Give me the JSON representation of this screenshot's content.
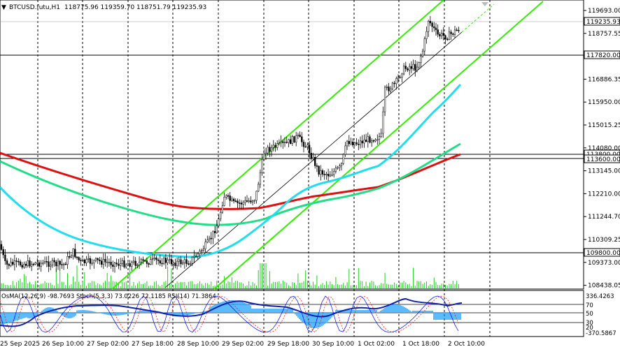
{
  "header": {
    "symbol": "BTCUSD.futu,H1",
    "ohlc": "118775.96 119359.70 118751.79 119235.93",
    "menu_glyph": "▼"
  },
  "price_axis": {
    "ticks": [
      "119693.00",
      "118757.55",
      "117820.00",
      "116886.35",
      "115950.00",
      "115015.25",
      "114080.00",
      "113145.00",
      "112210.00",
      "111244.70",
      "110309.25",
      "109373.00",
      "108438.05"
    ],
    "boxes": [
      {
        "id": "current",
        "text": "119235.93"
      },
      {
        "id": "level1",
        "text": "117820.00"
      },
      {
        "id": "level2",
        "text": "113800.00"
      },
      {
        "id": "level3",
        "text": "113600.00"
      },
      {
        "id": "level4",
        "text": "109800.00"
      }
    ]
  },
  "indicator": {
    "label": "OsMA(12,26,9) -98.7693  Stoch(5,3,3) 73.0226 72.1185  RSI(14) 71.3864",
    "axis_ticks": [
      "336.4263",
      "70",
      "50",
      "30",
      "20",
      "-370.5867"
    ]
  },
  "time_axis": {
    "ticks": [
      "25 Sep 2025",
      "26 Sep 10:00",
      "27 Sep 02:00",
      "27 Sep 18:00",
      "28 Sep 10:00",
      "29 Sep 02:00",
      "29 Sep 18:00",
      "30 Sep 10:00",
      "1 Oct 02:00",
      "1 Oct 18:00",
      "2 Oct 10:00"
    ]
  },
  "colors": {
    "candle": "#000000",
    "volume": "#22cc22",
    "ma_red": "#dd1111",
    "ma_green": "#22dd88",
    "ma_cyan": "#22ddee",
    "channel": "#33ee00",
    "osma": "#33aaff",
    "rsi": "#1122aa",
    "stoch": "#0000ff",
    "stoch_signal": "#ff0000"
  }
}
